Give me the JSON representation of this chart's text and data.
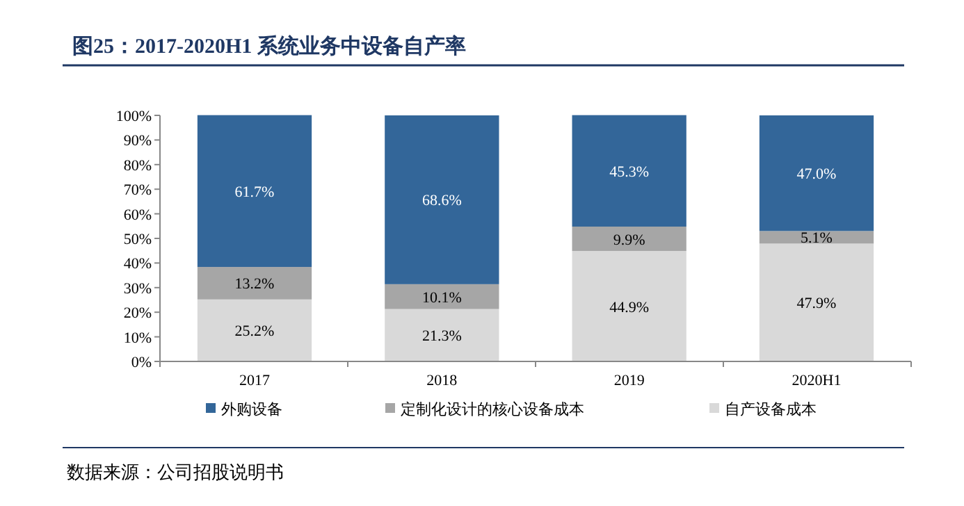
{
  "chart_data": {
    "type": "bar",
    "stacked": true,
    "title": "图25：2017-2020H1 系统业务中设备自产率",
    "categories": [
      "2017",
      "2018",
      "2019",
      "2020H1"
    ],
    "series": [
      {
        "name": "自产设备成本",
        "color": "#d9d9d9",
        "values": [
          25.2,
          21.3,
          44.9,
          47.9
        ],
        "value_labels": [
          "25.2%",
          "21.3%",
          "44.9%",
          "47.9%"
        ]
      },
      {
        "name": "定制化设计的核心设备成本",
        "color": "#a6a6a6",
        "values": [
          13.2,
          10.1,
          9.9,
          5.1
        ],
        "value_labels": [
          "13.2%",
          "10.1%",
          "9.9%",
          "5.1%"
        ]
      },
      {
        "name": "外购设备",
        "color": "#336699",
        "values": [
          61.7,
          68.6,
          45.3,
          47.0
        ],
        "value_labels": [
          "61.7%",
          "68.6%",
          "45.3%",
          "47.0%"
        ]
      }
    ],
    "ylim": [
      0,
      100
    ],
    "yticks": [
      {
        "value": 0,
        "label": "0%"
      },
      {
        "value": 10,
        "label": "10%"
      },
      {
        "value": 20,
        "label": "20%"
      },
      {
        "value": 30,
        "label": "30%"
      },
      {
        "value": 40,
        "label": "40%"
      },
      {
        "value": 50,
        "label": "50%"
      },
      {
        "value": 60,
        "label": "60%"
      },
      {
        "value": 70,
        "label": "70%"
      },
      {
        "value": 80,
        "label": "80%"
      },
      {
        "value": 90,
        "label": "90%"
      },
      {
        "value": 100,
        "label": "100%"
      }
    ],
    "legend": "bottom",
    "grid": false,
    "annotations": [
      "数据来源：公司招股说明书"
    ]
  }
}
